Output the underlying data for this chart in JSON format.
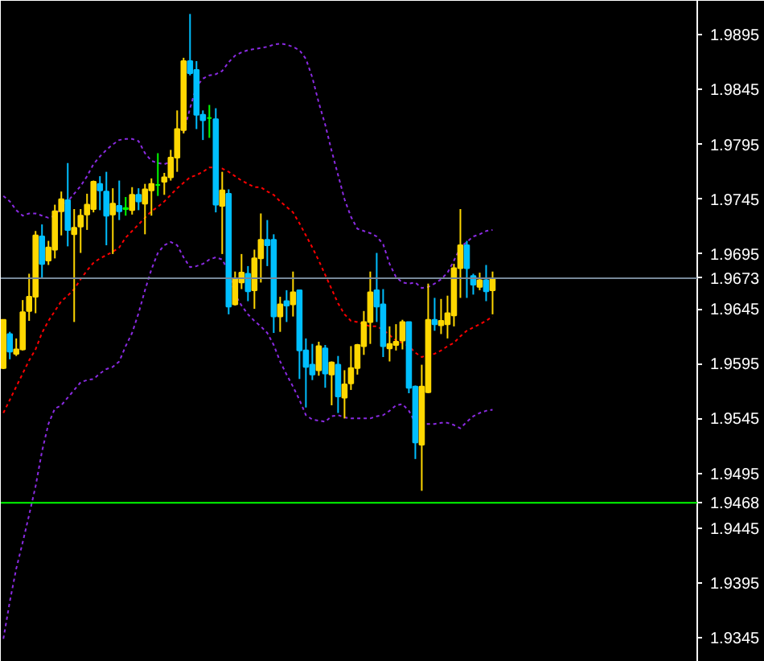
{
  "chart_data": {
    "type": "candlestick",
    "categories": [
      null,
      null,
      null,
      null,
      null,
      null,
      null,
      null,
      null,
      null,
      null,
      null,
      null,
      null,
      null,
      null,
      null,
      null,
      null,
      null,
      null,
      null,
      null,
      null,
      null,
      null,
      null,
      null,
      null,
      null,
      null,
      null,
      null,
      null,
      null,
      null,
      null,
      null,
      null,
      null,
      null,
      null,
      null,
      null,
      null,
      null,
      null,
      null,
      null,
      null,
      null,
      null,
      null,
      null,
      null,
      null,
      null,
      null,
      null,
      null,
      null,
      null,
      null,
      null,
      null,
      null,
      null,
      null,
      null,
      null,
      null,
      null,
      null,
      null,
      null,
      null,
      null
    ],
    "ohlc": [
      [
        1.9591,
        1.9635,
        1.959,
        1.9635
      ],
      [
        1.9622,
        1.9624,
        1.9599,
        1.9606
      ],
      [
        1.9604,
        1.9618,
        1.9602,
        1.9608
      ],
      [
        1.9608,
        1.9653,
        1.9607,
        1.9642
      ],
      [
        1.9643,
        1.9677,
        1.9634,
        1.9656
      ],
      [
        1.9656,
        1.9716,
        1.9641,
        1.9712
      ],
      [
        1.9711,
        1.9722,
        1.9673,
        1.9686
      ],
      [
        1.9689,
        1.9707,
        1.9685,
        1.9701
      ],
      [
        1.9699,
        1.974,
        1.9691,
        1.9734
      ],
      [
        1.9734,
        1.9752,
        1.9712,
        1.9745
      ],
      [
        1.9744,
        1.9778,
        1.9702,
        1.9717
      ],
      [
        1.9713,
        1.9736,
        1.9633,
        1.9719
      ],
      [
        1.972,
        1.9736,
        1.9696,
        1.973
      ],
      [
        1.9731,
        1.975,
        1.9717,
        1.974
      ],
      [
        1.9736,
        1.9762,
        1.9733,
        1.9761
      ],
      [
        1.9759,
        1.9766,
        1.9735,
        1.9753
      ],
      [
        1.9752,
        1.977,
        1.9703,
        1.973
      ],
      [
        1.9731,
        1.9755,
        1.9695,
        1.9741
      ],
      [
        1.9739,
        1.9762,
        1.9726,
        1.9734
      ],
      [
        1.9736,
        1.9747,
        1.973,
        1.9737
      ],
      [
        1.9735,
        1.9756,
        1.9731,
        1.9749
      ],
      [
        1.9749,
        1.9755,
        1.9735,
        1.9743
      ],
      [
        1.9741,
        1.9759,
        1.9713,
        1.9754
      ],
      [
        1.9753,
        1.9764,
        1.973,
        1.9759
      ],
      [
        1.9758,
        1.9787,
        1.9748,
        1.9758
      ],
      [
        1.9761,
        1.9769,
        1.9749,
        1.9765
      ],
      [
        1.9765,
        1.979,
        1.9762,
        1.9783
      ],
      [
        1.9783,
        1.9826,
        1.977,
        1.9809
      ],
      [
        1.9808,
        1.9874,
        1.9805,
        1.9871
      ],
      [
        1.9871,
        1.9914,
        1.9858,
        1.986
      ],
      [
        1.9863,
        1.9871,
        1.9809,
        1.9822
      ],
      [
        1.9822,
        1.9826,
        1.9799,
        1.9817
      ],
      [
        1.9819,
        1.9831,
        1.9801,
        1.9819
      ],
      [
        1.9818,
        1.9828,
        1.9733,
        1.974
      ],
      [
        1.9739,
        1.977,
        1.9695,
        1.9753
      ],
      [
        1.975,
        1.9754,
        1.964,
        1.9647
      ],
      [
        1.9649,
        1.9679,
        1.9648,
        1.9673
      ],
      [
        1.9669,
        1.9695,
        1.9663,
        1.9678
      ],
      [
        1.9677,
        1.9684,
        1.9652,
        1.9661
      ],
      [
        1.9662,
        1.9699,
        1.9645,
        1.9691
      ],
      [
        1.9691,
        1.9732,
        1.9669,
        1.9708
      ],
      [
        1.9708,
        1.9726,
        1.9684,
        1.9703
      ],
      [
        1.9708,
        1.9713,
        1.9623,
        1.9638
      ],
      [
        1.9638,
        1.9656,
        1.9624,
        1.9649
      ],
      [
        1.9652,
        1.9662,
        1.9633,
        1.9648
      ],
      [
        1.9649,
        1.9679,
        1.9638,
        1.966
      ],
      [
        1.9662,
        1.9662,
        1.9581,
        1.9607
      ],
      [
        1.9607,
        1.9618,
        1.9555,
        1.9592
      ],
      [
        1.9594,
        1.9613,
        1.958,
        1.9585
      ],
      [
        1.9589,
        1.9615,
        1.9584,
        1.9611
      ],
      [
        1.9609,
        1.9612,
        1.9573,
        1.9586
      ],
      [
        1.9585,
        1.9597,
        1.9557,
        1.9596
      ],
      [
        1.9594,
        1.9602,
        1.955,
        1.9565
      ],
      [
        1.9564,
        1.9589,
        1.9545,
        1.9576
      ],
      [
        1.9577,
        1.9611,
        1.9571,
        1.9591
      ],
      [
        1.9591,
        1.9613,
        1.9585,
        1.9612
      ],
      [
        1.9611,
        1.9643,
        1.9603,
        1.9633
      ],
      [
        1.9633,
        1.9679,
        1.9613,
        1.966
      ],
      [
        1.9662,
        1.9696,
        1.9633,
        1.9647
      ],
      [
        1.9649,
        1.9663,
        1.9601,
        1.9611
      ],
      [
        1.9609,
        1.9629,
        1.9597,
        1.9613
      ],
      [
        1.9612,
        1.9631,
        1.9607,
        1.9615
      ],
      [
        1.9616,
        1.9635,
        1.9608,
        1.9633
      ],
      [
        1.9633,
        1.9633,
        1.9568,
        1.9573
      ],
      [
        1.9574,
        1.9575,
        1.9508,
        1.9523
      ],
      [
        1.9521,
        1.9594,
        1.9479,
        1.9574
      ],
      [
        1.9569,
        1.9668,
        1.9568,
        1.9635
      ],
      [
        1.9635,
        1.9655,
        1.9625,
        1.9631
      ],
      [
        1.963,
        1.9654,
        1.9622,
        1.9634
      ],
      [
        1.9631,
        1.9657,
        1.9618,
        1.9641
      ],
      [
        1.9639,
        1.9686,
        1.9629,
        1.9682
      ],
      [
        1.9682,
        1.9736,
        1.9655,
        1.9703
      ],
      [
        1.9703,
        1.9707,
        1.9655,
        1.9682
      ],
      [
        1.9675,
        1.9677,
        1.9658,
        1.9667
      ],
      [
        1.9665,
        1.9678,
        1.9662,
        1.9671
      ],
      [
        1.9671,
        1.9685,
        1.9652,
        1.9661
      ],
      [
        1.9662,
        1.9679,
        1.964,
        1.9673
      ]
    ],
    "colors": [
      "#ffd700",
      "#00bfff",
      "#ffd700",
      "#ffd700",
      "#ffd700",
      "#ffd700",
      "#00bfff",
      "#ffd700",
      "#ffd700",
      "#ffd700",
      "#00bfff",
      "#ffd700",
      "#ffd700",
      "#ffd700",
      "#ffd700",
      "#00bfff",
      "#00bfff",
      "#ffd700",
      "#00bfff",
      "#00ff00",
      "#ffd700",
      "#00bfff",
      "#ffd700",
      "#ffd700",
      "#00ff00",
      "#ffd700",
      "#ffd700",
      "#ffd700",
      "#ffd700",
      "#00bfff",
      "#00bfff",
      "#00bfff",
      "#00ff00",
      "#00bfff",
      "#ffd700",
      "#00bfff",
      "#ffd700",
      "#ffd700",
      "#00bfff",
      "#ffd700",
      "#ffd700",
      "#00bfff",
      "#00bfff",
      "#ffd700",
      "#00bfff",
      "#ffd700",
      "#00bfff",
      "#00bfff",
      "#00bfff",
      "#ffd700",
      "#00bfff",
      "#ffd700",
      "#00bfff",
      "#ffd700",
      "#ffd700",
      "#ffd700",
      "#ffd700",
      "#ffd700",
      "#00bfff",
      "#00bfff",
      "#ffd700",
      "#ffd700",
      "#ffd700",
      "#00bfff",
      "#00bfff",
      "#ffd700",
      "#ffd700",
      "#00bfff",
      "#ffd700",
      "#ffd700",
      "#ffd700",
      "#ffd700",
      "#00bfff",
      "#00bfff",
      "#ffd700",
      "#00bfff",
      "#ffd700"
    ],
    "series": [
      {
        "type": "line",
        "line_style": "dashed",
        "color": "#ff0000",
        "values": [
          1.955,
          1.9562,
          1.9574,
          1.9586,
          1.9598,
          1.9608,
          1.9623,
          1.9634,
          1.9643,
          1.9652,
          1.9657,
          1.9663,
          1.9672,
          1.968,
          1.9687,
          1.9691,
          1.9694,
          1.9697,
          1.9701,
          1.971,
          1.9716,
          1.9722,
          1.9728,
          1.9734,
          1.9738,
          1.9743,
          1.9749,
          1.9755,
          1.976,
          1.9765,
          1.9767,
          1.977,
          1.9774,
          1.9774,
          1.9773,
          1.977,
          1.9766,
          1.9762,
          1.9759,
          1.9756,
          1.9756,
          1.9752,
          1.9749,
          1.9743,
          1.9738,
          1.9733,
          1.9723,
          1.9712,
          1.9701,
          1.9689,
          1.9676,
          1.9663,
          1.965,
          1.964,
          1.9634,
          1.9633,
          1.9631,
          1.9629,
          1.9629,
          1.9626,
          1.9621,
          1.9616,
          1.9614,
          1.9611,
          1.9605,
          1.9601,
          1.9603,
          1.9604,
          1.9607,
          1.9611,
          1.9614,
          1.962,
          1.9625,
          1.9628,
          1.9631,
          1.9634,
          1.9638
        ]
      },
      {
        "type": "line",
        "line_style": "dashed",
        "color": "#8a2be2",
        "values": [
          1.9748,
          1.9743,
          1.9735,
          1.973,
          1.9732,
          1.9732,
          1.973,
          1.9728,
          1.973,
          1.9738,
          1.9743,
          1.975,
          1.9757,
          1.9766,
          1.9777,
          1.9784,
          1.979,
          1.9795,
          1.9799,
          1.98,
          1.98,
          1.9798,
          1.9787,
          1.978,
          1.9778,
          1.9777,
          1.9779,
          null,
          1.9806,
          1.9828,
          1.9848,
          1.9855,
          1.9858,
          1.9859,
          1.9862,
          1.987,
          1.9876,
          1.9879,
          1.9881,
          1.9882,
          1.9883,
          1.9884,
          1.9886,
          1.9887,
          1.9886,
          1.9884,
          1.9881,
          1.9873,
          1.9856,
          1.9833,
          1.9813,
          1.9789,
          1.9767,
          1.9745,
          1.9729,
          1.9718,
          1.9716,
          1.9714,
          1.9711,
          1.9704,
          1.9686,
          1.9674,
          1.9669,
          1.9668,
          1.9669,
          1.9664,
          1.9665,
          1.9668,
          1.9672,
          1.9678,
          1.9689,
          1.9701,
          1.9706,
          1.9711,
          1.9713,
          1.9716,
          1.9717
        ]
      },
      {
        "type": "line",
        "line_style": "dashed",
        "color": "#8a2be2",
        "values": [
          1.9344,
          1.9378,
          1.9408,
          1.9432,
          1.9457,
          1.9483,
          1.9515,
          1.954,
          1.9554,
          1.9557,
          1.9564,
          1.9571,
          1.9578,
          1.958,
          1.9581,
          1.9586,
          1.959,
          1.9592,
          1.9597,
          1.9611,
          1.9623,
          1.9641,
          1.9662,
          1.9681,
          1.9696,
          1.9703,
          1.9706,
          1.9703,
          1.9692,
          1.9683,
          1.9684,
          1.9686,
          1.969,
          1.9692,
          1.969,
          1.9679,
          1.9658,
          1.9648,
          1.964,
          1.9634,
          1.9629,
          1.9623,
          1.9612,
          1.9597,
          1.9585,
          1.9574,
          1.9562,
          1.9548,
          1.9544,
          1.9543,
          1.9542,
          1.9547,
          1.9548,
          1.9546,
          1.9545,
          1.9545,
          1.9545,
          1.9545,
          1.9547,
          1.9548,
          1.9552,
          1.9557,
          1.9558,
          1.9552,
          1.9541,
          1.954,
          1.954,
          1.954,
          1.9541,
          1.9541,
          1.9539,
          1.9536,
          1.9542,
          1.9547,
          1.955,
          1.9552,
          1.9553
        ]
      }
    ],
    "ylim": [
      1.9323,
      1.9926
    ],
    "yticks": [
      1.9345,
      1.9395,
      1.9445,
      1.9495,
      1.9545,
      1.9595,
      1.9645,
      1.9695,
      1.9745,
      1.9795,
      1.9845,
      1.9895
    ],
    "tick_labels": "y",
    "ref_lines": [
      {
        "axis": "y",
        "value": 1.9673,
        "label": "1.9673",
        "color": "#778899"
      },
      {
        "axis": "y",
        "value": 1.9468,
        "label": "1.9468",
        "color": "#00ff00"
      }
    ]
  }
}
